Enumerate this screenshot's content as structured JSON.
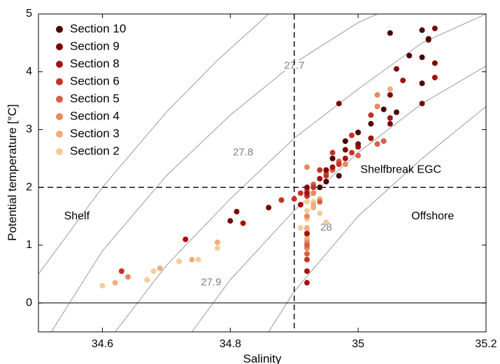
{
  "chart_data": {
    "type": "scatter",
    "title": "",
    "xlabel": "Salinity",
    "ylabel": "Potential temperature [°C]",
    "xlim": [
      34.5,
      35.2
    ],
    "ylim": [
      -0.5,
      5
    ],
    "xticks": [
      34.6,
      34.8,
      35,
      35.2
    ],
    "xtick_labels": [
      "34.6",
      "34.8",
      "35",
      "35.2"
    ],
    "yticks": [
      0,
      1,
      2,
      3,
      4,
      5
    ],
    "ytick_labels": [
      "0",
      "1",
      "2",
      "3",
      "4",
      "5"
    ],
    "grid": false,
    "legend_position": "top-left",
    "reference_lines": [
      {
        "orientation": "vertical",
        "value": 34.9,
        "style": "dashed"
      },
      {
        "orientation": "horizontal",
        "value": 2,
        "style": "dashed"
      },
      {
        "orientation": "horizontal",
        "value": 0,
        "style": "solid"
      }
    ],
    "contours": [
      {
        "label": "27.7",
        "label_x": 34.9,
        "label_y": 4.1,
        "points": [
          [
            34.5,
            0.5
          ],
          [
            34.6,
            2.0
          ],
          [
            34.7,
            3.3
          ],
          [
            34.78,
            4.2
          ],
          [
            34.86,
            5.0
          ]
        ]
      },
      {
        "label": "27.8",
        "label_x": 34.82,
        "label_y": 2.6,
        "points": [
          [
            34.52,
            -0.5
          ],
          [
            34.6,
            0.9
          ],
          [
            34.7,
            2.2
          ],
          [
            34.8,
            3.25
          ],
          [
            34.9,
            4.15
          ],
          [
            35.0,
            4.85
          ],
          [
            35.03,
            5.0
          ]
        ]
      },
      {
        "label": "27.9",
        "label_x": 34.77,
        "label_y": 0.35,
        "points": [
          [
            34.62,
            -0.5
          ],
          [
            34.7,
            0.65
          ],
          [
            34.8,
            1.8
          ],
          [
            34.9,
            2.85
          ],
          [
            35.0,
            3.7
          ],
          [
            35.1,
            4.5
          ],
          [
            35.2,
            5.0
          ]
        ]
      },
      {
        "label": "28",
        "label_x": 34.95,
        "label_y": 1.3,
        "points": [
          [
            34.74,
            -0.5
          ],
          [
            34.8,
            0.4
          ],
          [
            34.9,
            1.6
          ],
          [
            35.0,
            2.6
          ],
          [
            35.1,
            3.45
          ],
          [
            35.2,
            4.1
          ]
        ]
      },
      {
        "label": "",
        "points": [
          [
            34.86,
            -0.5
          ],
          [
            34.9,
            0.2
          ],
          [
            35.0,
            1.5
          ],
          [
            35.1,
            2.5
          ],
          [
            35.2,
            3.4
          ]
        ]
      }
    ],
    "region_labels": [
      {
        "text": "Shelf",
        "x": 34.54,
        "y": 1.5
      },
      {
        "text": "Shelfbreak EGC",
        "x": 35.13,
        "y": 2.3
      },
      {
        "text": "Offshore",
        "x": 35.15,
        "y": 1.5
      }
    ],
    "series": [
      {
        "name": "Section 10",
        "color": "#4a0000",
        "points": [
          [
            35.05,
            4.67
          ],
          [
            35.1,
            4.72
          ],
          [
            35.11,
            4.57
          ],
          [
            35.1,
            4.25
          ],
          [
            35.08,
            4.28
          ],
          [
            35.1,
            3.8
          ],
          [
            35.06,
            3.3
          ],
          [
            35.04,
            3.35
          ],
          [
            35.02,
            3.1
          ],
          [
            34.98,
            2.8
          ],
          [
            34.96,
            2.5
          ],
          [
            35.0,
            2.95
          ],
          [
            34.97,
            2.2
          ],
          [
            34.95,
            2.1
          ],
          [
            34.94,
            2.0
          ]
        ]
      },
      {
        "name": "Section 9",
        "color": "#7a0808",
        "points": [
          [
            35.12,
            4.75
          ],
          [
            35.11,
            4.55
          ],
          [
            35.12,
            4.15
          ],
          [
            35.06,
            4.05
          ],
          [
            35.05,
            3.6
          ],
          [
            35.1,
            3.45
          ],
          [
            35.05,
            3.1
          ],
          [
            35.0,
            2.75
          ],
          [
            34.98,
            2.65
          ],
          [
            34.97,
            3.45
          ],
          [
            34.92,
            2.0
          ],
          [
            34.81,
            1.58
          ],
          [
            34.8,
            1.42
          ],
          [
            34.86,
            1.65
          ],
          [
            34.95,
            2.3
          ]
        ]
      },
      {
        "name": "Section 8",
        "color": "#a60f0f",
        "points": [
          [
            35.12,
            3.9
          ],
          [
            35.07,
            3.85
          ],
          [
            35.05,
            3.2
          ],
          [
            35.02,
            2.85
          ],
          [
            35.0,
            2.7
          ],
          [
            34.98,
            2.5
          ],
          [
            34.96,
            2.35
          ],
          [
            34.92,
            1.9
          ],
          [
            34.91,
            1.7
          ],
          [
            34.82,
            1.38
          ],
          [
            34.73,
            1.1
          ],
          [
            34.92,
            1.2
          ],
          [
            34.92,
            0.55
          ],
          [
            34.92,
            0.35
          ],
          [
            34.94,
            2.15
          ]
        ]
      },
      {
        "name": "Section 6",
        "color": "#c43222",
        "points": [
          [
            35.02,
            3.25
          ],
          [
            35.0,
            2.95
          ],
          [
            34.99,
            2.6
          ],
          [
            34.97,
            2.4
          ],
          [
            34.95,
            2.2
          ],
          [
            34.93,
            2.0
          ],
          [
            34.92,
            1.85
          ],
          [
            34.9,
            1.8
          ],
          [
            34.88,
            1.78
          ],
          [
            34.92,
            0.75
          ],
          [
            34.63,
            0.55
          ],
          [
            34.91,
            1.9
          ],
          [
            34.99,
            2.9
          ],
          [
            34.96,
            2.6
          ],
          [
            34.94,
            2.3
          ]
        ]
      },
      {
        "name": "Section 5",
        "color": "#d4614a",
        "points": [
          [
            35.04,
            2.8
          ],
          [
            35.03,
            2.75
          ],
          [
            35.0,
            2.55
          ],
          [
            34.97,
            2.45
          ],
          [
            34.95,
            2.25
          ],
          [
            34.93,
            2.05
          ],
          [
            34.92,
            1.95
          ],
          [
            34.92,
            1.0
          ],
          [
            34.92,
            0.85
          ],
          [
            34.95,
            2.1
          ],
          [
            34.96,
            2.3
          ],
          [
            34.94,
            1.75
          ]
        ]
      },
      {
        "name": "Section 4",
        "color": "#e8885e",
        "points": [
          [
            35.03,
            3.6
          ],
          [
            35.03,
            3.4
          ],
          [
            35.02,
            2.85
          ],
          [
            34.98,
            2.4
          ],
          [
            34.95,
            2.3
          ],
          [
            34.92,
            2.35
          ],
          [
            34.93,
            1.9
          ],
          [
            34.92,
            1.5
          ],
          [
            34.92,
            1.05
          ],
          [
            34.92,
            0.95
          ],
          [
            34.64,
            0.45
          ]
        ]
      },
      {
        "name": "Section 3",
        "color": "#efad80",
        "points": [
          [
            35.05,
            3.7
          ],
          [
            34.96,
            2.3
          ],
          [
            34.94,
            1.8
          ],
          [
            34.93,
            1.65
          ],
          [
            34.92,
            1.5
          ],
          [
            34.92,
            1.3
          ],
          [
            34.92,
            1.1
          ],
          [
            34.78,
            1.05
          ],
          [
            34.74,
            0.75
          ],
          [
            34.62,
            0.35
          ],
          [
            34.69,
            0.6
          ],
          [
            34.92,
            1.0
          ],
          [
            34.93,
            1.7
          ]
        ]
      },
      {
        "name": "Section 2",
        "color": "#f7cc9a",
        "points": [
          [
            34.94,
            1.55
          ],
          [
            34.93,
            1.9
          ],
          [
            34.92,
            1.75
          ],
          [
            34.92,
            1.6
          ],
          [
            34.92,
            1.45
          ],
          [
            34.92,
            1.25
          ],
          [
            34.92,
            1.15
          ],
          [
            34.91,
            1.3
          ],
          [
            34.78,
            0.95
          ],
          [
            34.75,
            0.75
          ],
          [
            34.72,
            0.72
          ],
          [
            34.68,
            0.55
          ],
          [
            34.67,
            0.4
          ],
          [
            34.6,
            0.3
          ],
          [
            34.95,
            1.4
          ],
          [
            34.93,
            1.75
          ]
        ]
      }
    ]
  }
}
